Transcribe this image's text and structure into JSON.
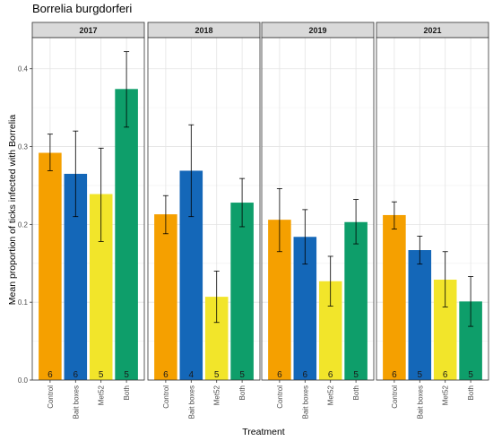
{
  "chart_data": {
    "type": "bar",
    "title": "Borrelia burgdorferi",
    "xlabel": "Treatment",
    "ylabel": "Mean proportion of ticks infected with Borrelia",
    "ylim": [
      0,
      0.44
    ],
    "yticks": [
      0.0,
      0.1,
      0.2,
      0.3,
      0.4
    ],
    "ytick_labels": [
      "0.0",
      "0.1",
      "0.2",
      "0.3",
      "0.4"
    ],
    "categories": [
      "Control",
      "Bait boxes",
      "Met52",
      "Both"
    ],
    "colors": {
      "Control": "#F5A000",
      "Bait boxes": "#1467B8",
      "Met52": "#F2E52A",
      "Both": "#0E9E6A"
    },
    "grid": true,
    "legend": "none",
    "panels": [
      {
        "label": "2017",
        "values": [
          0.292,
          0.265,
          0.239,
          0.374
        ],
        "lower": [
          0.269,
          0.21,
          0.178,
          0.325
        ],
        "upper": [
          0.316,
          0.32,
          0.298,
          0.422
        ],
        "n": [
          "6",
          "6",
          "5",
          "5"
        ]
      },
      {
        "label": "2018",
        "values": [
          0.213,
          0.269,
          0.107,
          0.228
        ],
        "lower": [
          0.188,
          0.21,
          0.074,
          0.197
        ],
        "upper": [
          0.237,
          0.328,
          0.14,
          0.259
        ],
        "n": [
          "6",
          "4",
          "5",
          "5"
        ]
      },
      {
        "label": "2019",
        "values": [
          0.206,
          0.184,
          0.127,
          0.203
        ],
        "lower": [
          0.165,
          0.149,
          0.095,
          0.175
        ],
        "upper": [
          0.246,
          0.219,
          0.159,
          0.232
        ],
        "n": [
          "6",
          "6",
          "6",
          "5"
        ]
      },
      {
        "label": "2021",
        "values": [
          0.212,
          0.167,
          0.129,
          0.101
        ],
        "lower": [
          0.194,
          0.149,
          0.094,
          0.069
        ],
        "upper": [
          0.229,
          0.185,
          0.165,
          0.133
        ],
        "n": [
          "6",
          "5",
          "6",
          "5"
        ]
      }
    ]
  }
}
